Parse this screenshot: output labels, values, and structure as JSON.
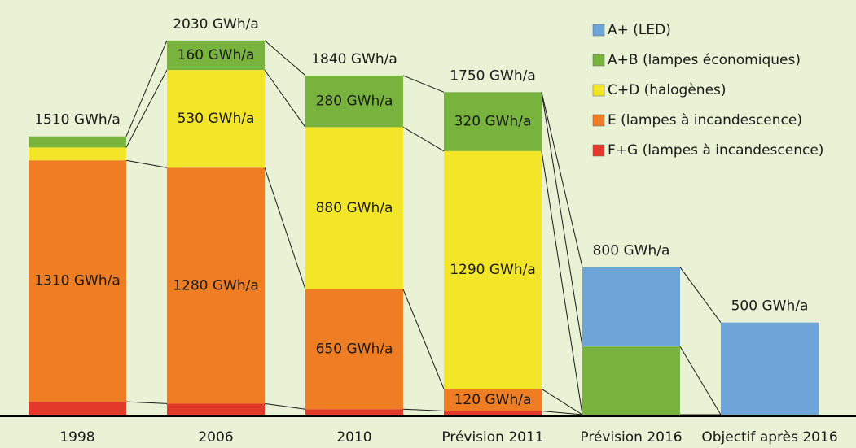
{
  "chart_data": {
    "type": "stacked-bar",
    "categories": [
      "1998",
      "2006",
      "2010",
      "Prévision 2011",
      "Prévision 2016",
      "Objectif après 2016"
    ],
    "total_labels": [
      "1510 GWh/a",
      "2030 GWh/a",
      "1840 GWh/a",
      "1750 GWh/a",
      "800 GWh/a",
      "500 GWh/a"
    ],
    "series": [
      {
        "name": "F+G (lampes à incandescence)",
        "color": "#e2392b",
        "values": [
          70,
          60,
          30,
          20,
          0,
          0
        ],
        "value_labels": [
          null,
          null,
          null,
          null,
          null,
          null
        ]
      },
      {
        "name": "E (lampes à incandescence)",
        "color": "#ee7d23",
        "values": [
          1310,
          1280,
          650,
          120,
          0,
          0
        ],
        "value_labels": [
          "1310 GWh/a",
          "1280 GWh/a",
          "650 GWh/a",
          "120 GWh/a",
          null,
          null
        ]
      },
      {
        "name": "C+D (halogènes)",
        "color": "#f3e629",
        "values": [
          70,
          530,
          880,
          1290,
          0,
          0
        ],
        "value_labels": [
          null,
          "530 GWh/a",
          "880 GWh/a",
          "1290 GWh/a",
          null,
          null
        ]
      },
      {
        "name": "A+B (lampes économiques)",
        "color": "#78b33d",
        "values": [
          60,
          160,
          280,
          320,
          370,
          0
        ],
        "value_labels": [
          null,
          "160 GWh/a",
          "280 GWh/a",
          "320 GWh/a",
          null,
          null
        ]
      },
      {
        "name": "A+ (LED)",
        "color": "#6ea5d8",
        "values": [
          0,
          0,
          0,
          0,
          430,
          500
        ],
        "value_labels": [
          null,
          null,
          null,
          null,
          null,
          null
        ]
      }
    ],
    "ylim": [
      0,
      2250
    ]
  }
}
